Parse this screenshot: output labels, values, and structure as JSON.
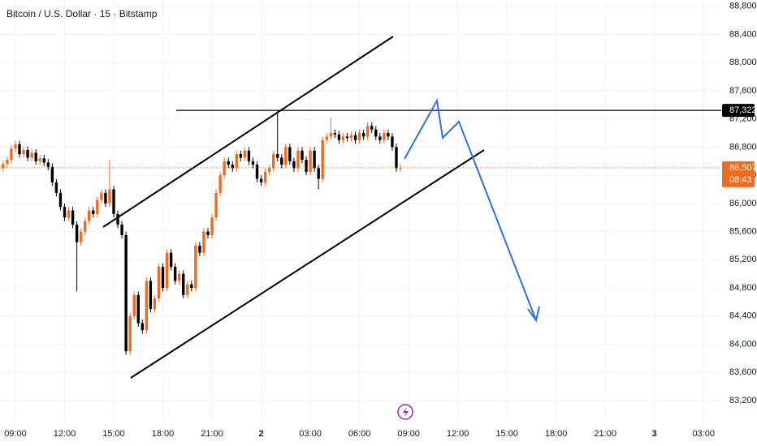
{
  "chart_data": {
    "type": "candlestick",
    "title": "Bitcoin / U.S. Dollar · 15 · Bitstamp",
    "x": [
      -0.75,
      -0.5,
      -0.25,
      0,
      0.25,
      0.5,
      0.75,
      1,
      1.25,
      1.5,
      1.75,
      2,
      2.25,
      2.5,
      2.75,
      3,
      3.25,
      3.5,
      3.75,
      4,
      4.25,
      4.5,
      4.75,
      5,
      5.25,
      5.5,
      5.75,
      6,
      6.25,
      6.5,
      6.75,
      7,
      7.25,
      7.5,
      7.75,
      8,
      8.25,
      8.5,
      8.75,
      9,
      9.25,
      9.5,
      9.75,
      10,
      10.25,
      10.5,
      10.75,
      11,
      11.25,
      11.5,
      11.75,
      12,
      12.25,
      12.5,
      12.75,
      13,
      13.25,
      13.5,
      13.75,
      14,
      14.25,
      14.5,
      14.75,
      15,
      15.25,
      15.5,
      15.75,
      16,
      16.25,
      16.5,
      16.75,
      17,
      17.25,
      17.5,
      17.75,
      18,
      18.25,
      18.5,
      18.75,
      19,
      19.25,
      19.5,
      19.75,
      20,
      20.25,
      20.5,
      20.75,
      21,
      21.25,
      21.5,
      21.75,
      22,
      22.25,
      22.5,
      22.75,
      23,
      23.25,
      23.5
    ],
    "open": [
      86500,
      86560,
      86620,
      86780,
      86840,
      86700,
      86760,
      86650,
      86720,
      86600,
      86640,
      86580,
      86520,
      86300,
      86150,
      85950,
      85800,
      85900,
      85700,
      85450,
      85600,
      85750,
      85900,
      85850,
      86050,
      86150,
      86000,
      86200,
      85850,
      85700,
      85550,
      83900,
      84400,
      84700,
      84300,
      84200,
      84900,
      84500,
      84650,
      85100,
      84800,
      85300,
      85100,
      84900,
      85000,
      84700,
      84850,
      84800,
      85400,
      85300,
      85600,
      85550,
      85800,
      86150,
      86400,
      86600,
      86550,
      86500,
      86700,
      86650,
      86750,
      86600,
      86550,
      86350,
      86300,
      86450,
      86500,
      86700,
      86650,
      86550,
      86800,
      86600,
      86500,
      86750,
      86620,
      86450,
      86750,
      86500,
      86350,
      86900,
      86950,
      87000,
      86980,
      86900,
      86950,
      86930,
      86970,
      86900,
      87000,
      86950,
      87100,
      87050,
      86950,
      86900,
      87000,
      86950,
      86800,
      86500
    ],
    "high": [
      86610,
      86670,
      86830,
      86890,
      86890,
      86810,
      86810,
      86770,
      86770,
      86690,
      86690,
      86630,
      86570,
      86350,
      86200,
      86000,
      85950,
      85950,
      85750,
      85650,
      85800,
      85950,
      85950,
      86100,
      86200,
      86200,
      86620,
      86250,
      85900,
      85750,
      85600,
      84450,
      84750,
      84750,
      84350,
      84950,
      84950,
      84700,
      85150,
      85150,
      85350,
      85350,
      85150,
      85050,
      85050,
      84900,
      84900,
      85450,
      85450,
      85650,
      85650,
      85850,
      86200,
      86450,
      86650,
      86650,
      86600,
      86750,
      86750,
      86800,
      86800,
      86650,
      86600,
      86400,
      86500,
      86550,
      86750,
      87310,
      86700,
      86850,
      86850,
      86650,
      86800,
      86800,
      86670,
      86800,
      86800,
      86550,
      86950,
      87000,
      87220,
      87050,
      87030,
      87000,
      87000,
      87020,
      87020,
      87050,
      87050,
      87150,
      87150,
      87100,
      87000,
      87050,
      87050,
      87000,
      86850,
      86560
    ],
    "low": [
      86450,
      86510,
      86570,
      86730,
      86650,
      86650,
      86600,
      86600,
      86550,
      86550,
      86530,
      86470,
      86250,
      86100,
      85900,
      85750,
      85750,
      85650,
      84750,
      85400,
      85550,
      85700,
      85800,
      85800,
      86000,
      85950,
      85950,
      85800,
      85650,
      85500,
      83850,
      83850,
      84350,
      84250,
      84150,
      84150,
      84450,
      84450,
      84600,
      84750,
      84750,
      85050,
      84850,
      84850,
      84650,
      84650,
      84750,
      84750,
      85250,
      85250,
      85500,
      85500,
      85750,
      86100,
      86350,
      86500,
      86450,
      86450,
      86600,
      86600,
      86550,
      86500,
      86300,
      86250,
      86250,
      86400,
      86450,
      86600,
      86500,
      86500,
      86550,
      86450,
      86450,
      86570,
      86400,
      86400,
      86450,
      86200,
      86300,
      86850,
      86900,
      86930,
      86850,
      86850,
      86880,
      86880,
      86850,
      86850,
      86900,
      86900,
      87000,
      86900,
      86850,
      86850,
      86900,
      86750,
      86450,
      86450
    ],
    "close": [
      86560,
      86620,
      86780,
      86840,
      86700,
      86760,
      86650,
      86720,
      86600,
      86640,
      86580,
      86520,
      86300,
      86150,
      85950,
      85800,
      85900,
      85700,
      85450,
      85600,
      85750,
      85900,
      85850,
      86050,
      86150,
      86000,
      86200,
      85850,
      85700,
      85550,
      83900,
      84400,
      84700,
      84300,
      84200,
      84900,
      84500,
      84650,
      85100,
      84800,
      85300,
      85100,
      84900,
      85000,
      84700,
      84850,
      84800,
      85400,
      85300,
      85600,
      85550,
      85800,
      86150,
      86400,
      86600,
      86550,
      86500,
      86700,
      86650,
      86750,
      86600,
      86550,
      86350,
      86300,
      86450,
      86500,
      86700,
      86650,
      86550,
      86800,
      86600,
      86500,
      86750,
      86620,
      86450,
      86750,
      86500,
      86350,
      86900,
      86950,
      87000,
      86980,
      86900,
      86950,
      86930,
      86970,
      86900,
      87000,
      86950,
      87100,
      87050,
      86950,
      86900,
      87000,
      86950,
      86800,
      86500,
      86507
    ],
    "up_color": "#ef6c1f",
    "down_color": "#000000",
    "xlim": [
      -0.94,
      43.08
    ],
    "xticks": [
      {
        "value": 0,
        "label": "09:00"
      },
      {
        "value": 3,
        "label": "12:00"
      },
      {
        "value": 6,
        "label": "15:00"
      },
      {
        "value": 9,
        "label": "18:00"
      },
      {
        "value": 12,
        "label": "21:00"
      },
      {
        "value": 15,
        "label": "2"
      },
      {
        "value": 18,
        "label": "03:00"
      },
      {
        "value": 21,
        "label": "06:00"
      },
      {
        "value": 24,
        "label": "09:00"
      },
      {
        "value": 27,
        "label": "12:00"
      },
      {
        "value": 30,
        "label": "15:00"
      },
      {
        "value": 33,
        "label": "18:00"
      },
      {
        "value": 36,
        "label": "21:00"
      },
      {
        "value": 39,
        "label": "3"
      },
      {
        "value": 42,
        "label": "03:00"
      }
    ],
    "ylim": [
      82900,
      88890
    ],
    "yticks": [
      {
        "value": 83200,
        "label": "83,200"
      },
      {
        "value": 83600,
        "label": "83,600"
      },
      {
        "value": 84000,
        "label": "84,000"
      },
      {
        "value": 84400,
        "label": "84,400"
      },
      {
        "value": 84800,
        "label": "84,800"
      },
      {
        "value": 85200,
        "label": "85,200"
      },
      {
        "value": 85600,
        "label": "85,600"
      },
      {
        "value": 86000,
        "label": "86,000"
      },
      {
        "value": 86400,
        "label": "86,400"
      },
      {
        "value": 86800,
        "label": "86,800"
      },
      {
        "value": 87200,
        "label": "87,200"
      },
      {
        "value": 87600,
        "label": "87,600"
      },
      {
        "value": 88000,
        "label": "88,000"
      },
      {
        "value": 88400,
        "label": "88,400"
      },
      {
        "value": 88800,
        "label": "88,800"
      }
    ],
    "level": {
      "value": 87322,
      "label": "87,322"
    },
    "last_price": {
      "value": 86507,
      "label": "86,507",
      "countdown": "08:43"
    }
  }
}
